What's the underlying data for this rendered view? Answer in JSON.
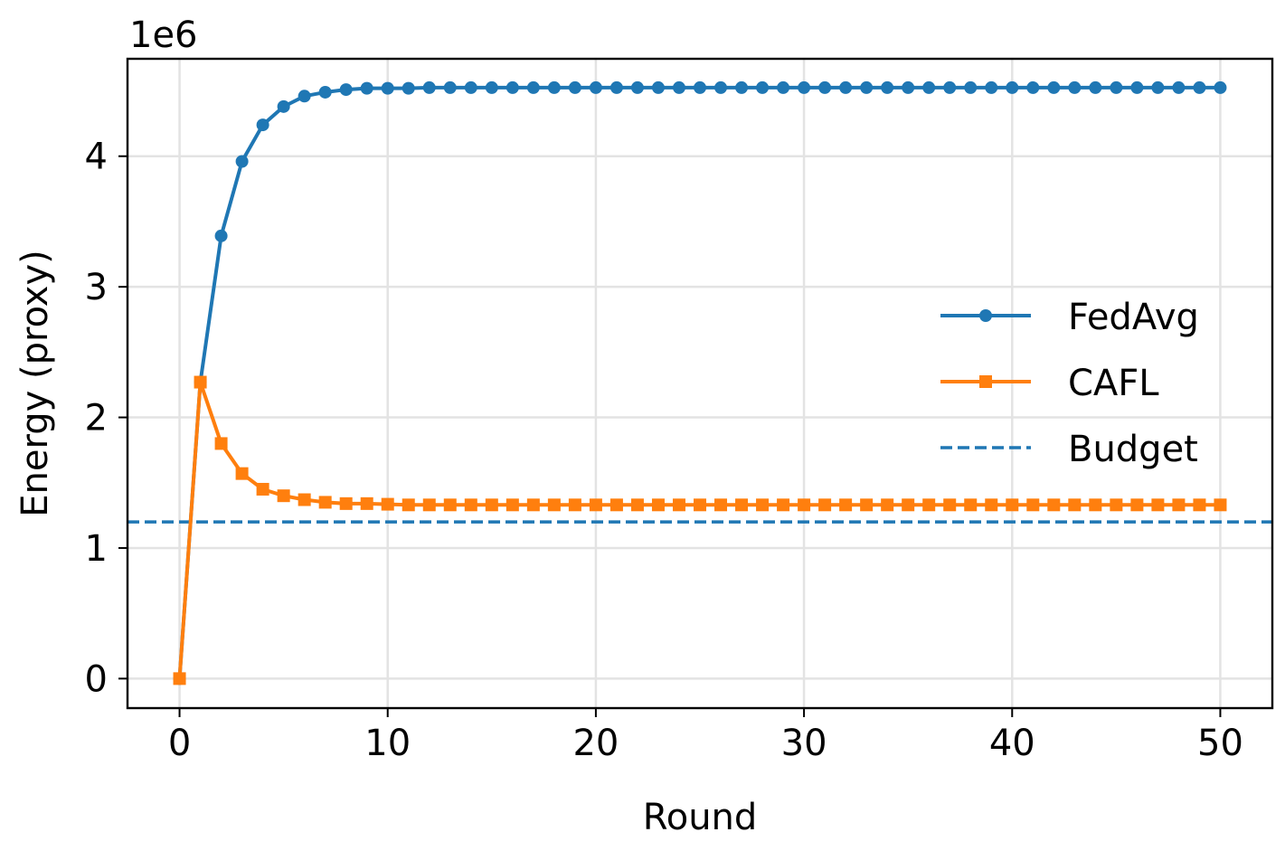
{
  "chart_data": {
    "type": "line",
    "title": "",
    "xlabel": "Round",
    "ylabel": "Energy (proxy)",
    "y_offset_label": "1e6",
    "xlim": [
      -2.5,
      52.5
    ],
    "ylim": [
      -0.226,
      4.746
    ],
    "y_scale_factor": 1000000,
    "xticks": [
      0,
      10,
      20,
      30,
      40,
      50
    ],
    "yticks": [
      0,
      1,
      2,
      3,
      4
    ],
    "grid": true,
    "legend_position": "center-right",
    "x": [
      0,
      1,
      2,
      3,
      4,
      5,
      6,
      7,
      8,
      9,
      10,
      11,
      12,
      13,
      14,
      15,
      16,
      17,
      18,
      19,
      20,
      21,
      22,
      23,
      24,
      25,
      26,
      27,
      28,
      29,
      30,
      31,
      32,
      33,
      34,
      35,
      36,
      37,
      38,
      39,
      40,
      41,
      42,
      43,
      44,
      45,
      46,
      47,
      48,
      49,
      50
    ],
    "series": [
      {
        "name": "FedAvg",
        "color": "#1f77b4",
        "marker": "circle",
        "linestyle": "solid",
        "values": [
          0,
          2.27,
          3.39,
          3.96,
          4.24,
          4.38,
          4.46,
          4.49,
          4.51,
          4.52,
          4.52,
          4.52,
          4.525,
          4.525,
          4.525,
          4.525,
          4.525,
          4.525,
          4.525,
          4.525,
          4.525,
          4.525,
          4.525,
          4.525,
          4.525,
          4.525,
          4.525,
          4.525,
          4.525,
          4.525,
          4.525,
          4.525,
          4.525,
          4.525,
          4.525,
          4.525,
          4.525,
          4.525,
          4.525,
          4.525,
          4.525,
          4.525,
          4.525,
          4.525,
          4.525,
          4.525,
          4.525,
          4.525,
          4.525,
          4.525,
          4.525
        ]
      },
      {
        "name": "CAFL",
        "color": "#ff7f0e",
        "marker": "square",
        "linestyle": "solid",
        "values": [
          0,
          2.27,
          1.8,
          1.57,
          1.45,
          1.4,
          1.37,
          1.35,
          1.34,
          1.34,
          1.335,
          1.33,
          1.33,
          1.33,
          1.33,
          1.33,
          1.33,
          1.33,
          1.33,
          1.33,
          1.33,
          1.33,
          1.33,
          1.33,
          1.33,
          1.33,
          1.33,
          1.33,
          1.33,
          1.33,
          1.33,
          1.33,
          1.33,
          1.33,
          1.33,
          1.33,
          1.33,
          1.33,
          1.33,
          1.33,
          1.33,
          1.33,
          1.33,
          1.33,
          1.33,
          1.33,
          1.33,
          1.33,
          1.33,
          1.33,
          1.33
        ]
      },
      {
        "name": "Budget",
        "color": "#1f77b4",
        "marker": "none",
        "linestyle": "dashed",
        "constant": 1.2
      }
    ]
  }
}
